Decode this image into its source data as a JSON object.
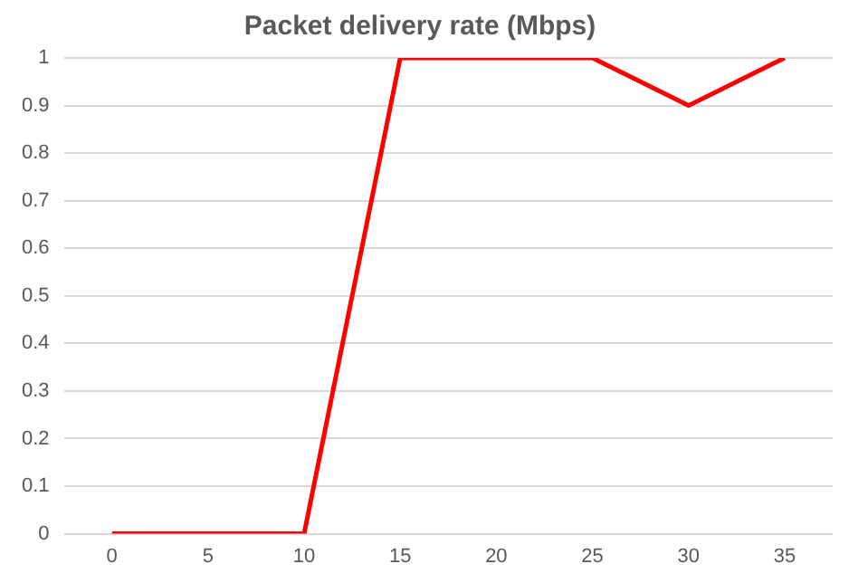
{
  "chart_data": {
    "type": "line",
    "title": "Packet delivery rate (Mbps)",
    "categories": [
      "0",
      "5",
      "10",
      "15",
      "20",
      "25",
      "30",
      "35"
    ],
    "series": [
      {
        "color": "#ff0000",
        "values": [
          0,
          0,
          0,
          1,
          1,
          1,
          0.9,
          1
        ]
      }
    ],
    "ylim": [
      0,
      1
    ],
    "yticks": [
      0,
      0.1,
      0.2,
      0.3,
      0.4,
      0.5,
      0.6,
      0.7,
      0.8,
      0.9,
      1
    ],
    "grid": "y",
    "legend": false,
    "marker": "none",
    "line_style": "solid"
  }
}
